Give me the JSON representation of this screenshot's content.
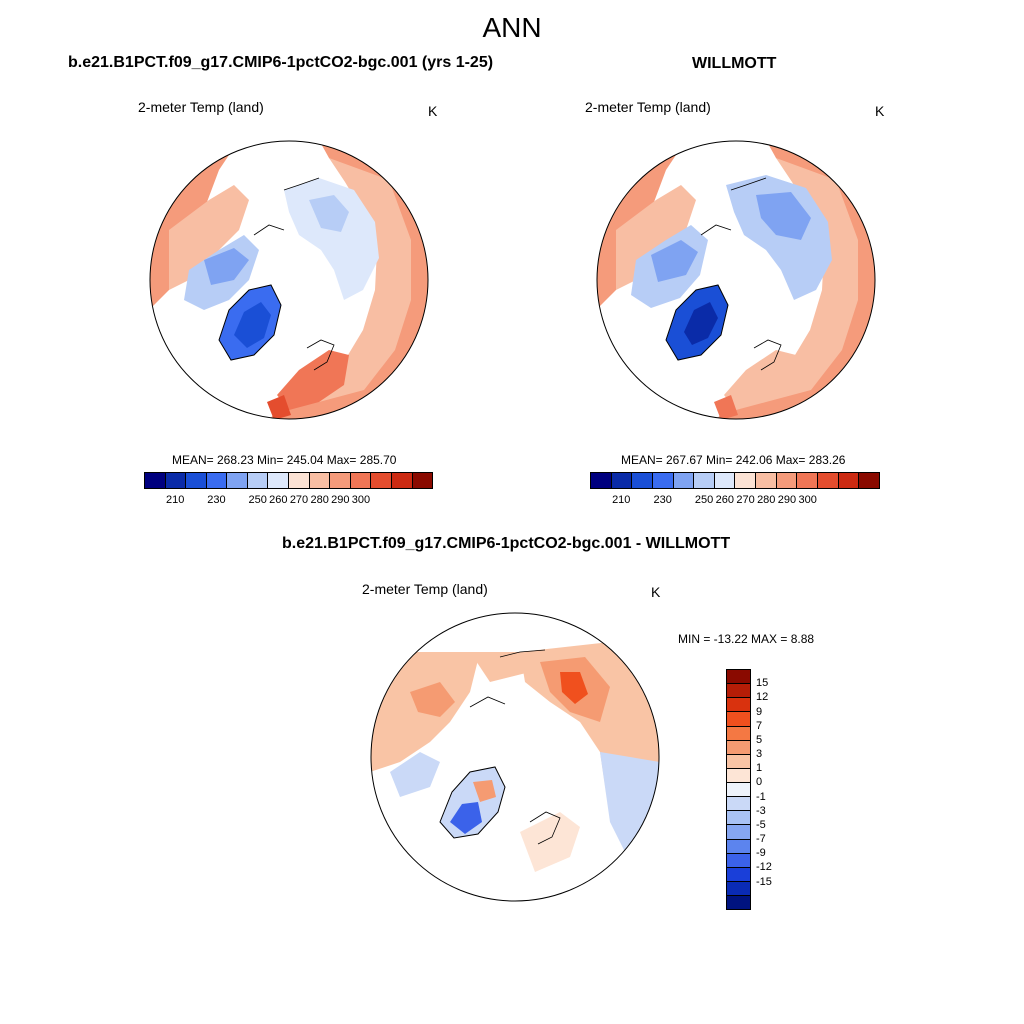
{
  "figure": {
    "title": "ANN"
  },
  "colors": {
    "abs_scale": [
      "#00007f",
      "#0a2ba8",
      "#1a4fd6",
      "#3a6cf0",
      "#7fa3f2",
      "#b7cdf6",
      "#dde8fb",
      "#fbe2d4",
      "#f8bea3",
      "#f59b7b",
      "#f07656",
      "#e44d2e",
      "#cc2a12",
      "#8a0a00"
    ],
    "diff_scale": [
      "#8a0a00",
      "#b51d07",
      "#d9320e",
      "#f0501e",
      "#f47843",
      "#f59b72",
      "#f9c4a5",
      "#fde5d6",
      "#eef3fb",
      "#cad9f7",
      "#a9c2f4",
      "#86a6f1",
      "#5c84ee",
      "#3b62ea",
      "#1a3fd9",
      "#0a2bb5",
      "#00137f"
    ]
  },
  "panels": [
    {
      "title": "b.e21.B1PCT.f09_g17.CMIP6-1pctCO2-bgc.001 (yrs 1-25)",
      "variable": "2-meter Temp (land)",
      "units": "K",
      "stats": "MEAN= 268.23  Min= 245.04  Max= 285.70",
      "colorbar_ticks": [
        "210",
        "230",
        "250",
        "260",
        "270",
        "280",
        "290",
        "300"
      ]
    },
    {
      "title": "WILLMOTT",
      "variable": "2-meter Temp (land)",
      "units": "K",
      "stats": "MEAN= 267.67  Min= 242.06  Max= 283.26",
      "colorbar_ticks": [
        "210",
        "230",
        "250",
        "260",
        "270",
        "280",
        "290",
        "300"
      ]
    },
    {
      "title": "b.e21.B1PCT.f09_g17.CMIP6-1pctCO2-bgc.001 - WILLMOTT",
      "variable": "2-meter Temp (land)",
      "units": "K",
      "stats": "MIN = -13.22 MAX =   8.88",
      "colorbar_ticks": [
        "15",
        "12",
        "9",
        "7",
        "5",
        "3",
        "1",
        "0",
        "-1",
        "-3",
        "-5",
        "-7",
        "-9",
        "-12",
        "-15"
      ]
    }
  ]
}
